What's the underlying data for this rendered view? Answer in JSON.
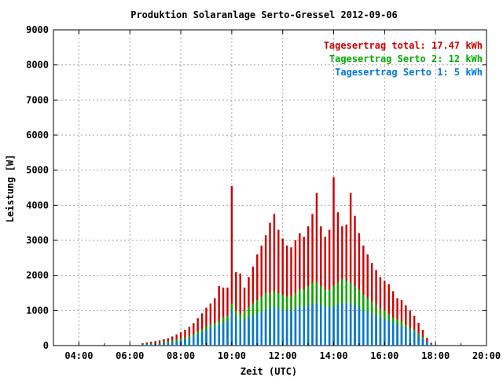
{
  "chart_data": {
    "type": "bar",
    "stacked": true,
    "title": "Produktion Solaranlage Serto-Gressel 2012-09-06",
    "xlabel": "Zeit (UTC)",
    "ylabel": "Leistung [W]",
    "ylim": [
      0,
      9000
    ],
    "yticks": [
      0,
      1000,
      2000,
      3000,
      4000,
      5000,
      6000,
      7000,
      8000,
      9000
    ],
    "xlim_hours": [
      3,
      20
    ],
    "xticks": [
      "04:00",
      "06:00",
      "08:00",
      "10:00",
      "12:00",
      "14:00",
      "16:00",
      "18:00",
      "20:00"
    ],
    "grid": true,
    "legend_position": "top-right",
    "legend": [
      {
        "label": "Tagesertrag total: 17.47 kWh",
        "color": "#cc0000"
      },
      {
        "label": "Tagesertrag Serto 2: 12 kWh",
        "color": "#00aa00"
      },
      {
        "label": "Tagesertrag Serto 1: 5 kWh",
        "color": "#0077dd"
      }
    ],
    "colors": {
      "serto1": "#0077dd",
      "serto2": "#00aa00",
      "total": "#cc0000"
    },
    "times": [
      "06:30",
      "06:40",
      "06:50",
      "07:00",
      "07:10",
      "07:20",
      "07:30",
      "07:40",
      "07:50",
      "08:00",
      "08:10",
      "08:20",
      "08:30",
      "08:40",
      "08:50",
      "09:00",
      "09:10",
      "09:20",
      "09:30",
      "09:40",
      "09:50",
      "10:00",
      "10:10",
      "10:20",
      "10:30",
      "10:40",
      "10:50",
      "11:00",
      "11:10",
      "11:20",
      "11:30",
      "11:40",
      "11:50",
      "12:00",
      "12:10",
      "12:20",
      "12:30",
      "12:40",
      "12:50",
      "13:00",
      "13:10",
      "13:20",
      "13:30",
      "13:40",
      "13:50",
      "14:00",
      "14:10",
      "14:20",
      "14:30",
      "14:40",
      "14:50",
      "15:00",
      "15:10",
      "15:20",
      "15:30",
      "15:40",
      "15:50",
      "16:00",
      "16:10",
      "16:20",
      "16:30",
      "16:40",
      "16:50",
      "17:00",
      "17:10",
      "17:20",
      "17:30",
      "17:40",
      "17:50"
    ],
    "series": [
      {
        "name": "Serto 1",
        "values": [
          20,
          30,
          40,
          50,
          60,
          70,
          80,
          100,
          120,
          150,
          180,
          220,
          260,
          320,
          380,
          450,
          500,
          550,
          600,
          650,
          700,
          1000,
          800,
          700,
          750,
          800,
          850,
          900,
          950,
          1000,
          1050,
          1100,
          1050,
          1000,
          1000,
          1000,
          1050,
          1100,
          1100,
          1150,
          1200,
          1200,
          1150,
          1100,
          1100,
          1100,
          1150,
          1200,
          1200,
          1200,
          1150,
          1100,
          1000,
          950,
          900,
          850,
          800,
          750,
          700,
          650,
          600,
          550,
          500,
          450,
          400,
          300,
          200,
          120,
          50
        ]
      },
      {
        "name": "Serto 2",
        "values": [
          40,
          50,
          60,
          70,
          80,
          100,
          120,
          150,
          180,
          200,
          230,
          280,
          330,
          400,
          470,
          550,
          600,
          650,
          700,
          800,
          850,
          1200,
          1000,
          900,
          1000,
          1100,
          1200,
          1300,
          1400,
          1500,
          1500,
          1550,
          1500,
          1450,
          1400,
          1400,
          1500,
          1600,
          1600,
          1700,
          1800,
          1800,
          1700,
          1600,
          1600,
          1700,
          1800,
          1900,
          1850,
          1800,
          1700,
          1600,
          1450,
          1350,
          1250,
          1150,
          1050,
          1000,
          900,
          800,
          750,
          700,
          600,
          500,
          450,
          350,
          250,
          120,
          50
        ]
      },
      {
        "name": "Total",
        "values": [
          70,
          90,
          110,
          130,
          150,
          180,
          210,
          260,
          320,
          380,
          450,
          540,
          640,
          780,
          920,
          1080,
          1200,
          1350,
          1700,
          1650,
          1650,
          4550,
          2100,
          2050,
          1650,
          1950,
          2250,
          2600,
          2850,
          3150,
          3500,
          3750,
          3300,
          3050,
          2850,
          2800,
          3000,
          3200,
          3100,
          3400,
          3750,
          4350,
          3400,
          3100,
          3300,
          4800,
          3800,
          3400,
          3450,
          4350,
          3700,
          3200,
          2850,
          2600,
          2350,
          2150,
          1950,
          1850,
          1750,
          1550,
          1350,
          1300,
          1150,
          1000,
          850,
          650,
          450,
          220,
          80
        ]
      }
    ]
  }
}
